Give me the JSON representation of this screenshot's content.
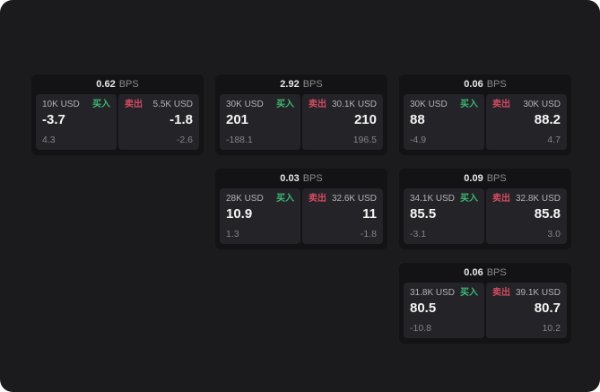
{
  "labels": {
    "bps": "BPS",
    "buy": "买入",
    "sell": "卖出"
  },
  "colors": {
    "surface": "#1b1b1d",
    "card": "#131316",
    "panel": "#242428",
    "buy": "#3cb873",
    "sell": "#d14b60"
  },
  "cards": [
    {
      "bps": "0.62",
      "buy": {
        "size": "10K USD",
        "value": "-3.7",
        "delta": "4.3"
      },
      "sell": {
        "size": "5.5K USD",
        "value": "-1.8",
        "delta": "-2.6"
      }
    },
    {
      "bps": "2.92",
      "buy": {
        "size": "30K USD",
        "value": "201",
        "delta": "-188.1"
      },
      "sell": {
        "size": "30.1K USD",
        "value": "210",
        "delta": "196.5"
      }
    },
    {
      "bps": "0.06",
      "buy": {
        "size": "30K USD",
        "value": "88",
        "delta": "-4.9"
      },
      "sell": {
        "size": "30K USD",
        "value": "88.2",
        "delta": "4.7"
      }
    },
    {
      "bps": "0.03",
      "buy": {
        "size": "28K USD",
        "value": "10.9",
        "delta": "1.3"
      },
      "sell": {
        "size": "32.6K USD",
        "value": "11",
        "delta": "-1.8"
      }
    },
    {
      "bps": "0.09",
      "buy": {
        "size": "34.1K USD",
        "value": "85.5",
        "delta": "-3.1"
      },
      "sell": {
        "size": "32.8K USD",
        "value": "85.8",
        "delta": "3.0"
      }
    },
    {
      "bps": "0.06",
      "buy": {
        "size": "31.8K USD",
        "value": "80.5",
        "delta": "-10.8"
      },
      "sell": {
        "size": "39.1K USD",
        "value": "80.7",
        "delta": "10.2"
      }
    }
  ]
}
